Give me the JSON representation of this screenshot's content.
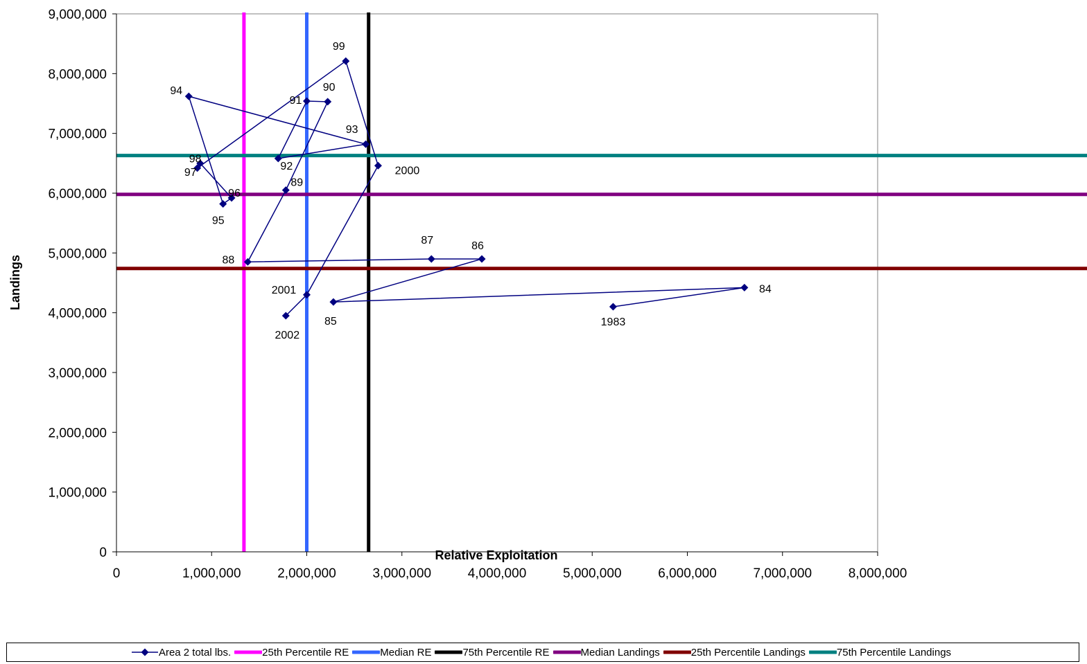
{
  "chart_data": {
    "type": "scatter",
    "xlabel": "Relative Exploitation",
    "ylabel": "Landings",
    "xlim": [
      0,
      8000000
    ],
    "ylim": [
      0,
      9000000
    ],
    "x_ticks": [
      0,
      1000000,
      2000000,
      3000000,
      4000000,
      5000000,
      6000000,
      7000000,
      8000000
    ],
    "y_ticks": [
      0,
      1000000,
      2000000,
      3000000,
      4000000,
      5000000,
      6000000,
      7000000,
      8000000,
      9000000
    ],
    "x_tick_labels": [
      "0",
      "1,000,000",
      "2,000,000",
      "3,000,000",
      "4,000,000",
      "5,000,000",
      "6,000,000",
      "7,000,000",
      "8,000,000"
    ],
    "y_tick_labels": [
      "0",
      "1,000,000",
      "2,000,000",
      "3,000,000",
      "4,000,000",
      "5,000,000",
      "6,000,000",
      "7,000,000",
      "8,000,000",
      "9,000,000"
    ],
    "grid": false,
    "legend_position": "bottom",
    "series": [
      {
        "name": "Area 2 total lbs.",
        "color": "#000080",
        "marker": "diamond",
        "connected": true,
        "points": [
          {
            "label": "1983",
            "x": 5220000,
            "y": 4100000
          },
          {
            "label": "84",
            "x": 6600000,
            "y": 4420000
          },
          {
            "label": "85",
            "x": 2280000,
            "y": 4180000
          },
          {
            "label": "86",
            "x": 3840000,
            "y": 4900000
          },
          {
            "label": "87",
            "x": 3310000,
            "y": 4900000
          },
          {
            "label": "88",
            "x": 1380000,
            "y": 4850000
          },
          {
            "label": "89",
            "x": 1780000,
            "y": 6050000
          },
          {
            "label": "90",
            "x": 2220000,
            "y": 7530000
          },
          {
            "label": "91",
            "x": 2000000,
            "y": 7540000
          },
          {
            "label": "92",
            "x": 1700000,
            "y": 6580000
          },
          {
            "label": "93",
            "x": 2620000,
            "y": 6820000
          },
          {
            "label": "94",
            "x": 760000,
            "y": 7620000
          },
          {
            "label": "95",
            "x": 1120000,
            "y": 5820000
          },
          {
            "label": "96",
            "x": 1210000,
            "y": 5920000
          },
          {
            "label": "97",
            "x": 880000,
            "y": 6500000
          },
          {
            "label": "98",
            "x": 850000,
            "y": 6420000
          },
          {
            "label": "99",
            "x": 2410000,
            "y": 8210000
          },
          {
            "label": "2000",
            "x": 2750000,
            "y": 6460000
          },
          {
            "label": "2001",
            "x": 2000000,
            "y": 4300000
          },
          {
            "label": "2002",
            "x": 1780000,
            "y": 3950000
          }
        ]
      },
      {
        "name": "25th Percentile RE",
        "color": "#ff00ff",
        "kind": "vline",
        "x": 1340000
      },
      {
        "name": "Median RE",
        "color": "#3366ff",
        "kind": "vline",
        "x": 2000000
      },
      {
        "name": "75th Percentile RE",
        "color": "#000000",
        "kind": "vline",
        "x": 2650000
      },
      {
        "name": "Median Landings",
        "color": "#800080",
        "kind": "hline",
        "y": 5980000
      },
      {
        "name": "25th Percentile Landings",
        "color": "#800000",
        "kind": "hline",
        "y": 4740000
      },
      {
        "name": "75th Percentile Landings",
        "color": "#008080",
        "kind": "hline",
        "y": 6630000
      }
    ]
  }
}
